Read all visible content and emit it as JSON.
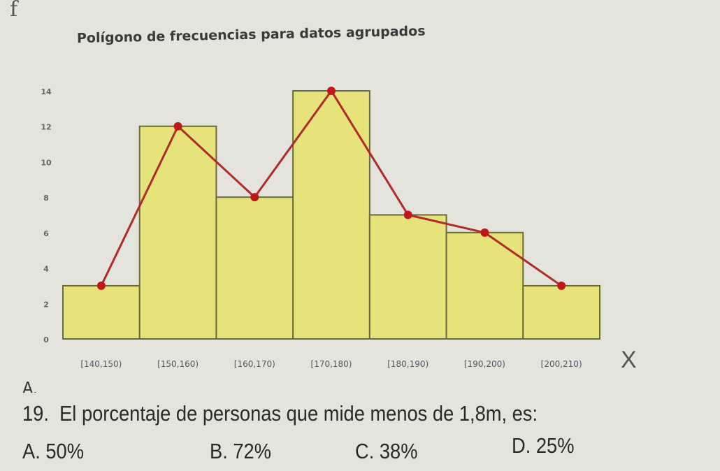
{
  "header": {
    "axis_letter": "f"
  },
  "chart_data": {
    "type": "bar",
    "title": "Polígono de frecuencias para datos agrupados",
    "xlabel": "X",
    "ylabel": "f",
    "categories": [
      "[140,150)",
      "[150,160)",
      "[160,170)",
      "[170,180)",
      "[180,190)",
      "[190,200)",
      "[200,210)"
    ],
    "values": [
      3,
      12,
      8,
      14,
      7,
      6,
      3
    ],
    "polygon_values": [
      3,
      12,
      8,
      14,
      7,
      6,
      3
    ],
    "ylim": [
      0,
      14
    ],
    "yticks": [
      "0",
      "2",
      "4",
      "6",
      "8",
      "10",
      "12",
      "14"
    ],
    "grid": false,
    "colors": {
      "bar": "#e6e37a",
      "bar_border": "#6b6b3a",
      "line": "#b02a2a",
      "point": "#c01818"
    }
  },
  "question": {
    "cut_line": "A.",
    "number": "19.",
    "text": "El porcentaje de personas que mide menos de 1,8m, es:",
    "options": [
      "A.   50%",
      "B.  72%",
      "C. 38%",
      "D. 25%"
    ]
  }
}
